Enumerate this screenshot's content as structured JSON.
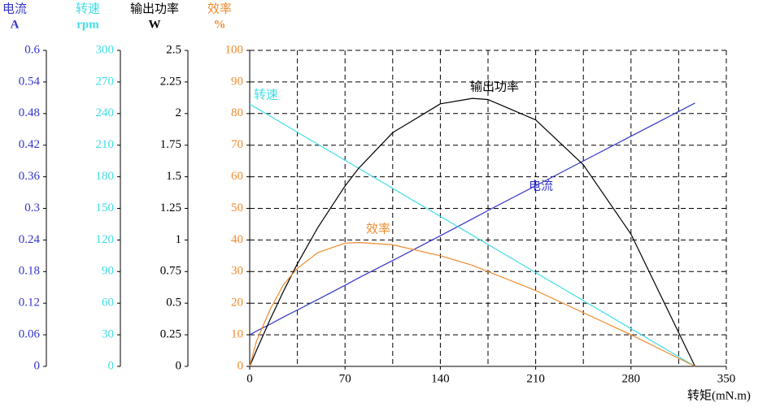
{
  "chart_data": {
    "type": "line",
    "xlabel": "转矩(mN.m)",
    "xlim": [
      0,
      350
    ],
    "xticks": [
      0,
      70,
      140,
      210,
      280,
      350
    ],
    "xgrid": [
      35,
      70,
      105,
      140,
      175,
      210,
      245,
      280,
      315,
      350
    ],
    "grid": true,
    "axes": [
      {
        "label": "电流",
        "unit": "A",
        "color": "#3535c8",
        "ylim": [
          0,
          0.6
        ],
        "yticks": [
          0,
          0.06,
          0.12,
          0.18,
          0.24,
          0.3,
          0.36,
          0.42,
          0.48,
          0.54,
          0.6
        ]
      },
      {
        "label": "转速",
        "unit": "rpm",
        "color": "#3fdde6",
        "ylim": [
          0,
          300
        ],
        "yticks": [
          0,
          30,
          60,
          90,
          120,
          150,
          180,
          210,
          240,
          270,
          300
        ]
      },
      {
        "label": "输出功率",
        "unit": "W",
        "color": "#000000",
        "ylim": [
          0,
          2.5
        ],
        "yticks": [
          0,
          0.25,
          0.5,
          0.75,
          1,
          1.25,
          1.5,
          1.75,
          2,
          2.25,
          2.5
        ]
      },
      {
        "label": "效率",
        "unit": "%",
        "color": "#f08a2c",
        "ylim": [
          0,
          100
        ],
        "yticks": [
          0,
          10,
          20,
          30,
          40,
          50,
          60,
          70,
          80,
          90,
          100
        ]
      }
    ],
    "x": [
      0,
      5,
      15,
      25,
      35,
      50,
      70,
      80,
      105,
      140,
      163.5,
      175,
      210,
      245,
      280,
      327
    ],
    "series": [
      {
        "name": "电流",
        "axis": 0,
        "color": "#3535c8",
        "values": [
          0.06,
          0.067,
          0.08,
          0.094,
          0.107,
          0.127,
          0.154,
          0.168,
          0.201,
          0.248,
          0.28,
          0.296,
          0.343,
          0.39,
          0.437,
          0.5
        ]
      },
      {
        "name": "转速",
        "axis": 1,
        "color": "#3fdde6",
        "values": [
          249,
          245.2,
          237.6,
          230,
          222.3,
          210.9,
          195.7,
          188.1,
          169.0,
          142.4,
          124.5,
          115.7,
          89.1,
          62.4,
          35.8,
          0
        ]
      },
      {
        "name": "输出功率",
        "axis": 2,
        "color": "#000000",
        "values": [
          0,
          0.128,
          0.371,
          0.599,
          0.811,
          1.098,
          1.427,
          1.567,
          1.849,
          2.077,
          2.12,
          2.111,
          1.95,
          1.595,
          1.046,
          0
        ]
      },
      {
        "name": "效率",
        "axis": 3,
        "color": "#f08a2c",
        "values": [
          0,
          8,
          18,
          26,
          31,
          36,
          39,
          39.2,
          38.5,
          35,
          32,
          30,
          24,
          17,
          10,
          0
        ]
      }
    ]
  }
}
